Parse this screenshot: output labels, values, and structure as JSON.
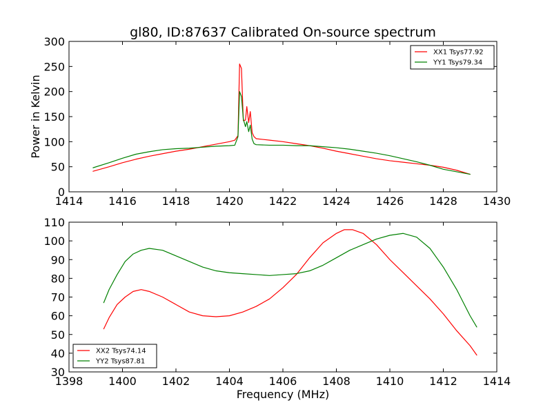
{
  "chart_data": [
    {
      "type": "line",
      "title": "gl80, ID:87637 Calibrated On-source spectrum",
      "xlabel": "",
      "ylabel": "Power in Kelvin",
      "xlim": [
        1414,
        1430
      ],
      "ylim": [
        0,
        300
      ],
      "xticks": [
        1414,
        1416,
        1418,
        1420,
        1422,
        1424,
        1426,
        1428,
        1430
      ],
      "yticks": [
        0,
        50,
        100,
        150,
        200,
        250,
        300
      ],
      "grid": false,
      "legend": "top-right",
      "series": [
        {
          "name": "XX1 Tsys77.92",
          "color": "#ff0000",
          "x": [
            1414.9,
            1415.5,
            1416,
            1416.5,
            1417,
            1417.5,
            1418,
            1418.5,
            1419,
            1419.5,
            1420,
            1420.2,
            1420.32,
            1420.38,
            1420.45,
            1420.52,
            1420.6,
            1420.65,
            1420.72,
            1420.78,
            1420.85,
            1420.92,
            1421,
            1421.5,
            1422,
            1422.5,
            1423,
            1423.5,
            1424,
            1424.5,
            1425,
            1425.5,
            1426,
            1426.5,
            1427,
            1427.5,
            1428,
            1428.5,
            1429
          ],
          "y": [
            41,
            50,
            58,
            65,
            71,
            76,
            81,
            85,
            90,
            95,
            100,
            103,
            112,
            255,
            246,
            142,
            143,
            170,
            138,
            160,
            118,
            110,
            106,
            103,
            100,
            96,
            92,
            87,
            81,
            76,
            71,
            66,
            62,
            59,
            56,
            53,
            49,
            43,
            35
          ]
        },
        {
          "name": "YY1 Tsys79.34",
          "color": "#008000",
          "x": [
            1414.9,
            1415.5,
            1416,
            1416.5,
            1417,
            1417.5,
            1418,
            1418.5,
            1419,
            1419.5,
            1420,
            1420.2,
            1420.32,
            1420.38,
            1420.45,
            1420.52,
            1420.6,
            1420.65,
            1420.72,
            1420.78,
            1420.85,
            1420.92,
            1421,
            1421.5,
            1422,
            1422.5,
            1423,
            1423.5,
            1424,
            1424.5,
            1425,
            1425.5,
            1426,
            1426.5,
            1427,
            1427.5,
            1428,
            1428.5,
            1429
          ],
          "y": [
            48,
            58,
            67,
            75,
            80,
            84,
            86,
            87,
            89,
            91,
            92,
            93,
            110,
            200,
            190,
            145,
            130,
            140,
            120,
            133,
            105,
            96,
            94,
            93,
            93,
            92,
            92,
            90,
            88,
            85,
            81,
            77,
            72,
            66,
            60,
            53,
            45,
            40,
            35
          ]
        }
      ]
    },
    {
      "type": "line",
      "title": "",
      "xlabel": "Frequency (MHz)",
      "ylabel": "",
      "xlim": [
        1398,
        1414
      ],
      "ylim": [
        30,
        110
      ],
      "xticks": [
        1398,
        1400,
        1402,
        1404,
        1406,
        1408,
        1410,
        1412,
        1414
      ],
      "yticks": [
        30,
        40,
        50,
        60,
        70,
        80,
        90,
        100,
        110
      ],
      "grid": false,
      "legend": "bottom-left",
      "series": [
        {
          "name": "XX2 Tsys74.14",
          "color": "#ff0000",
          "x": [
            1399.3,
            1399.5,
            1399.8,
            1400.1,
            1400.4,
            1400.7,
            1401,
            1401.5,
            1402,
            1402.5,
            1403,
            1403.5,
            1404,
            1404.5,
            1405,
            1405.5,
            1406,
            1406.5,
            1407,
            1407.5,
            1408,
            1408.3,
            1408.6,
            1409,
            1409.5,
            1410,
            1410.5,
            1411,
            1411.5,
            1412,
            1412.5,
            1413,
            1413.25
          ],
          "y": [
            53,
            59,
            66,
            70,
            73,
            74,
            73,
            70,
            66,
            62,
            60,
            59.5,
            60,
            62,
            65,
            69,
            75,
            82,
            91,
            99,
            104,
            106,
            106,
            104,
            98,
            90,
            83,
            76,
            69,
            61,
            52,
            44,
            39
          ]
        },
        {
          "name": "YY2 Tsys87.81",
          "color": "#008000",
          "x": [
            1399.3,
            1399.5,
            1399.8,
            1400.1,
            1400.4,
            1400.7,
            1401,
            1401.5,
            1402,
            1402.5,
            1403,
            1403.5,
            1404,
            1404.5,
            1405,
            1405.5,
            1406,
            1406.5,
            1407,
            1407.5,
            1408,
            1408.5,
            1409,
            1409.5,
            1410,
            1410.5,
            1411,
            1411.5,
            1412,
            1412.5,
            1413,
            1413.25
          ],
          "y": [
            67,
            74,
            82,
            89,
            93,
            95,
            96,
            95,
            92,
            89,
            86,
            84,
            83,
            82.5,
            82,
            81.5,
            82,
            82.5,
            84,
            87,
            91,
            95,
            98,
            101,
            103,
            104,
            102,
            96,
            86,
            74,
            60,
            54
          ]
        }
      ]
    }
  ]
}
